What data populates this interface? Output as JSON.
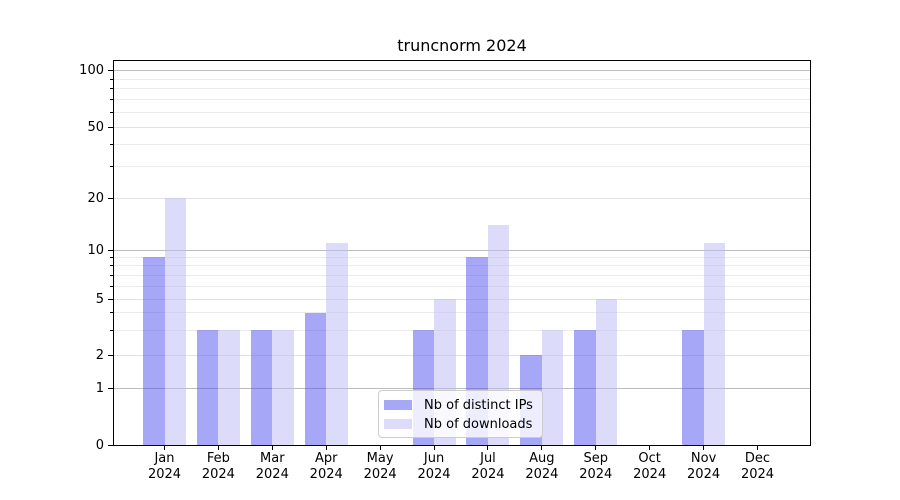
{
  "chart_data": {
    "type": "bar",
    "title": "truncnorm 2024",
    "categories": [
      {
        "month": "Jan",
        "year": "2024"
      },
      {
        "month": "Feb",
        "year": "2024"
      },
      {
        "month": "Mar",
        "year": "2024"
      },
      {
        "month": "Apr",
        "year": "2024"
      },
      {
        "month": "May",
        "year": "2024"
      },
      {
        "month": "Jun",
        "year": "2024"
      },
      {
        "month": "Jul",
        "year": "2024"
      },
      {
        "month": "Aug",
        "year": "2024"
      },
      {
        "month": "Sep",
        "year": "2024"
      },
      {
        "month": "Oct",
        "year": "2024"
      },
      {
        "month": "Nov",
        "year": "2024"
      },
      {
        "month": "Dec",
        "year": "2024"
      }
    ],
    "series": [
      {
        "name": "Nb of distinct IPs",
        "color": "rgba(80,80,240,0.5)",
        "values": [
          9,
          3,
          3,
          4,
          0,
          3,
          9,
          2,
          3,
          0,
          3,
          0
        ]
      },
      {
        "name": "Nb of downloads",
        "color": "rgba(185,185,245,0.5)",
        "values": [
          20,
          3,
          3,
          11,
          0,
          5,
          14,
          3,
          5,
          0,
          11,
          0
        ]
      }
    ],
    "yticks": [
      {
        "value": 0,
        "frac": 0.0
      },
      {
        "value": 1,
        "frac": 0.1484
      },
      {
        "value": 2,
        "frac": 0.2331
      },
      {
        "value": 5,
        "frac": 0.3802
      },
      {
        "value": 10,
        "frac": 0.5078
      },
      {
        "value": 20,
        "frac": 0.6432
      },
      {
        "value": 50,
        "frac": 0.8281
      },
      {
        "value": 100,
        "frac": 0.9753
      }
    ],
    "minor_gridlines": [
      3,
      4,
      6,
      7,
      8,
      9,
      30,
      40,
      60,
      70,
      80,
      90
    ],
    "grid": true,
    "legend_position": "lower center",
    "colors": {
      "decade_gridline": "#bdbdbd",
      "labeled_gridline": "#e2e2e2",
      "minor_gridline": "#ebebeb",
      "axis": "#000000"
    }
  }
}
